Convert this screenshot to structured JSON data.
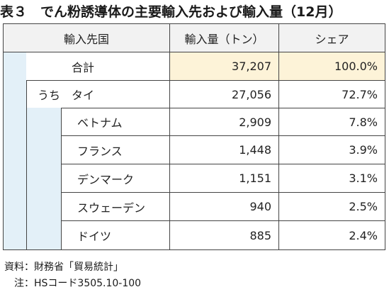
{
  "title": "表３　でん粉誘導体の主要輸入先および輸入量（12月）",
  "colors": {
    "header_bg": "#f2f2f2",
    "indent_band": "#e3f0f8",
    "value_band": "#fdf3d8",
    "line": "#444444"
  },
  "table": {
    "headers": [
      "輸入先国",
      "輸入量（トン）",
      "シェア"
    ],
    "rows": [
      {
        "name": "合計",
        "qty": "37,207",
        "share": "100.0%"
      },
      {
        "name": "うち　タイ",
        "qty": "27,056",
        "share": "72.7%"
      },
      {
        "name": "ベトナム",
        "qty": "2,909",
        "share": "7.8%"
      },
      {
        "name": "フランス",
        "qty": "1,448",
        "share": "3.9%"
      },
      {
        "name": "デンマーク",
        "qty": "1,151",
        "share": "3.1%"
      },
      {
        "name": "スウェーデン",
        "qty": "940",
        "share": "2.5%"
      },
      {
        "name": "ドイツ",
        "qty": "885",
        "share": "2.4%"
      }
    ]
  },
  "notes": {
    "source": "資料：財務省「貿易統計」",
    "note": "　注：HSコード3505.10-100"
  }
}
